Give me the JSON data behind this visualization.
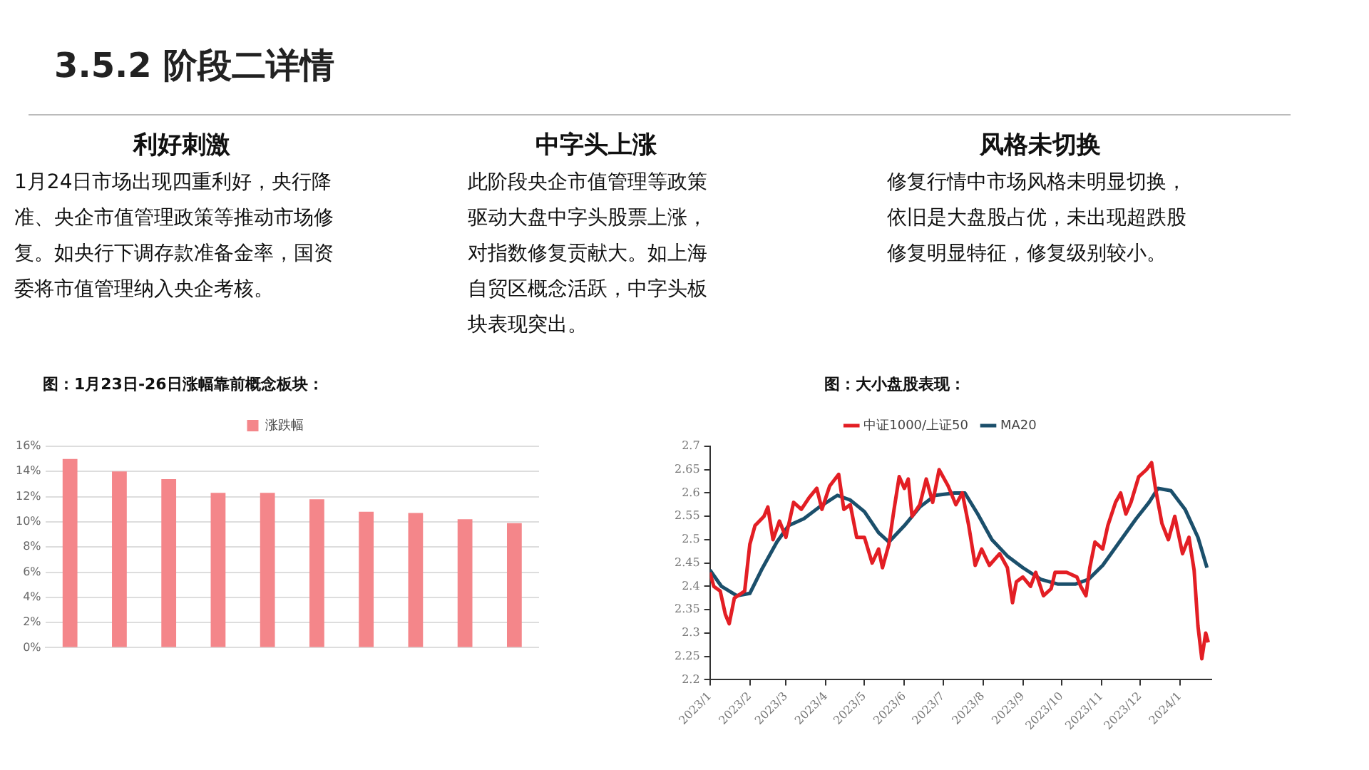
{
  "chart_data": [
    {
      "type": "other",
      "title": "3.5.2 阶段二详情",
      "annotations": [
        "利好刺激",
        "1月24日市场出现四重利好，央行降准、央企市值管理政策等推动市场修复。如央行下调存款准备金率，国资委将市值管理纳入央企考核。",
        "中字头上涨",
        "此阶段央企市值管理等政策驱动大盘中字头股票上涨，对指数修复贡献大。如上海自贸区概念活跃，中字头板块表现突出。",
        "风格未切换",
        "修复行情中市场风格未明显切换，依旧是大盘股占优，未出现超跌股修复明显特征，修复级别较小。"
      ]
    },
    {
      "type": "bar",
      "title": "图：1月23日-26日涨幅靠前概念板块：",
      "categories": [
        null,
        null,
        null,
        null,
        null,
        null,
        null,
        null,
        null,
        null
      ],
      "series": [
        {
          "name": "涨跌幅",
          "color": "#f4868a",
          "values": [
            15.0,
            14.0,
            13.4,
            12.3,
            12.3,
            11.8,
            10.8,
            10.7,
            10.2,
            9.9
          ]
        }
      ],
      "ylim": [
        0,
        16
      ],
      "yticks": [
        {
          "value": 0,
          "label": "0%"
        },
        {
          "value": 2,
          "label": "2%"
        },
        {
          "value": 4,
          "label": "4%"
        },
        {
          "value": 6,
          "label": "6%"
        },
        {
          "value": 8,
          "label": "8%"
        },
        {
          "value": 10,
          "label": "10%"
        },
        {
          "value": 12,
          "label": "12%"
        },
        {
          "value": 14,
          "label": "14%"
        },
        {
          "value": 16,
          "label": "16%"
        }
      ],
      "grid": "y",
      "legend": "top"
    },
    {
      "type": "line",
      "title": "图：大小盘股表现：",
      "line_style": "solid",
      "xlim": [
        "2023-01-01",
        "2024-01-26"
      ],
      "xticks": [
        {
          "value": "2023-01-01",
          "label": "2023/1"
        },
        {
          "value": "2023-02-01",
          "label": "2023/2"
        },
        {
          "value": "2023-03-01",
          "label": "2023/3"
        },
        {
          "value": "2023-04-01",
          "label": "2023/4"
        },
        {
          "value": "2023-05-01",
          "label": "2023/5"
        },
        {
          "value": "2023-06-01",
          "label": "2023/6"
        },
        {
          "value": "2023-07-01",
          "label": "2023/7"
        },
        {
          "value": "2023-08-01",
          "label": "2023/8"
        },
        {
          "value": "2023-09-01",
          "label": "2023/9"
        },
        {
          "value": "2023-10-01",
          "label": "2023/10"
        },
        {
          "value": "2023-11-01",
          "label": "2023/11"
        },
        {
          "value": "2023-12-01",
          "label": "2023/12"
        },
        {
          "value": "2024-01-01",
          "label": "2024/1"
        }
      ],
      "ylim": [
        2.2,
        2.7
      ],
      "yticks": [
        2.2,
        2.25,
        2.3,
        2.35,
        2.4,
        2.45,
        2.5,
        2.55,
        2.6,
        2.65,
        2.7
      ],
      "legend": "top",
      "series": [
        {
          "name": "中证1000/上证50",
          "color": "#e31e24",
          "x": [
            "2023-01-01",
            "2023-01-04",
            "2023-01-09",
            "2023-01-13",
            "2023-01-16",
            "2023-01-20",
            "2023-01-28",
            "2023-02-01",
            "2023-02-05",
            "2023-02-12",
            "2023-02-15",
            "2023-02-19",
            "2023-02-24",
            "2023-03-01",
            "2023-03-07",
            "2023-03-13",
            "2023-03-19",
            "2023-03-25",
            "2023-03-29",
            "2023-04-04",
            "2023-04-11",
            "2023-04-15",
            "2023-04-20",
            "2023-04-25",
            "2023-05-01",
            "2023-05-07",
            "2023-05-12",
            "2023-05-15",
            "2023-05-20",
            "2023-05-24",
            "2023-05-28",
            "2023-06-01",
            "2023-06-04",
            "2023-06-07",
            "2023-06-13",
            "2023-06-18",
            "2023-06-23",
            "2023-06-28",
            "2023-07-05",
            "2023-07-11",
            "2023-07-16",
            "2023-07-21",
            "2023-07-26",
            "2023-07-31",
            "2023-08-06",
            "2023-08-14",
            "2023-08-20",
            "2023-08-24",
            "2023-08-27",
            "2023-09-01",
            "2023-09-07",
            "2023-09-11",
            "2023-09-17",
            "2023-09-23",
            "2023-09-26",
            "2023-10-05",
            "2023-10-13",
            "2023-10-16",
            "2023-10-20",
            "2023-10-23",
            "2023-10-27",
            "2023-11-02",
            "2023-11-06",
            "2023-11-12",
            "2023-11-16",
            "2023-11-20",
            "2023-11-24",
            "2023-11-30",
            "2023-12-06",
            "2023-12-10",
            "2023-12-13",
            "2023-12-18",
            "2023-12-23",
            "2023-12-28",
            "2024-01-03",
            "2024-01-08",
            "2024-01-12",
            "2024-01-15",
            "2024-01-18",
            "2024-01-21",
            "2024-01-23"
          ],
          "values": [
            2.43,
            2.4,
            2.39,
            2.34,
            2.32,
            2.375,
            2.39,
            2.49,
            2.53,
            2.55,
            2.57,
            2.5,
            2.54,
            2.505,
            2.58,
            2.565,
            2.59,
            2.61,
            2.565,
            2.615,
            2.64,
            2.565,
            2.575,
            2.505,
            2.505,
            2.45,
            2.48,
            2.44,
            2.49,
            2.565,
            2.635,
            2.61,
            2.63,
            2.55,
            2.575,
            2.63,
            2.58,
            2.65,
            2.615,
            2.575,
            2.6,
            2.53,
            2.445,
            2.48,
            2.445,
            2.47,
            2.44,
            2.365,
            2.41,
            2.42,
            2.4,
            2.43,
            2.38,
            2.395,
            2.43,
            2.43,
            2.42,
            2.4,
            2.38,
            2.44,
            2.495,
            2.48,
            2.53,
            2.58,
            2.6,
            2.555,
            2.58,
            2.635,
            2.65,
            2.665,
            2.61,
            2.535,
            2.5,
            2.55,
            2.47,
            2.505,
            2.435,
            2.315,
            2.245,
            2.3,
            2.28
          ]
        },
        {
          "name": "MA20",
          "color": "#1b4f6b",
          "x": [
            "2023-01-01",
            "2023-01-10",
            "2023-01-22",
            "2023-02-01",
            "2023-02-10",
            "2023-02-22",
            "2023-03-03",
            "2023-03-15",
            "2023-03-27",
            "2023-04-10",
            "2023-04-20",
            "2023-05-01",
            "2023-05-12",
            "2023-05-20",
            "2023-06-01",
            "2023-06-13",
            "2023-06-25",
            "2023-07-10",
            "2023-07-18",
            "2023-07-28",
            "2023-08-08",
            "2023-08-20",
            "2023-09-01",
            "2023-09-15",
            "2023-09-28",
            "2023-10-12",
            "2023-10-22",
            "2023-11-02",
            "2023-11-15",
            "2023-11-28",
            "2023-12-08",
            "2023-12-15",
            "2023-12-25",
            "2024-01-05",
            "2024-01-15",
            "2024-01-22"
          ],
          "values": [
            2.435,
            2.4,
            2.38,
            2.385,
            2.435,
            2.495,
            2.53,
            2.545,
            2.57,
            2.595,
            2.585,
            2.56,
            2.515,
            2.495,
            2.53,
            2.57,
            2.595,
            2.6,
            2.6,
            2.555,
            2.5,
            2.465,
            2.44,
            2.415,
            2.405,
            2.405,
            2.415,
            2.445,
            2.495,
            2.545,
            2.58,
            2.61,
            2.605,
            2.565,
            2.505,
            2.44
          ]
        }
      ]
    }
  ]
}
